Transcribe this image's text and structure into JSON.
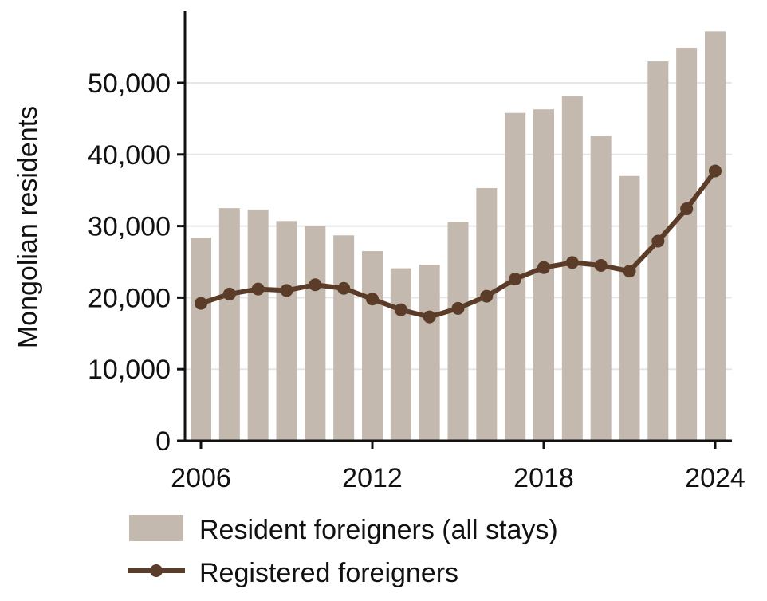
{
  "chart_data": {
    "type": "bar",
    "title": "",
    "xlabel": "",
    "ylabel": "Mongolian residents",
    "ylim": [
      0,
      60000
    ],
    "xlim": [
      2006,
      2024
    ],
    "x": [
      2006,
      2007,
      2008,
      2009,
      2010,
      2011,
      2012,
      2013,
      2014,
      2015,
      2016,
      2017,
      2018,
      2019,
      2020,
      2021,
      2022,
      2023,
      2024
    ],
    "y_ticks": [
      0,
      10000,
      20000,
      30000,
      40000,
      50000
    ],
    "y_tick_labels": [
      "0",
      "10,000",
      "20,000",
      "30,000",
      "40,000",
      "50,000"
    ],
    "x_ticks": [
      2006,
      2012,
      2018,
      2024
    ],
    "x_tick_labels": [
      "2006",
      "2012",
      "2018",
      "2024"
    ],
    "grid": "horizontal",
    "legend_position": "bottom",
    "series": [
      {
        "name": "Resident foreigners (all stays)",
        "kind": "bar",
        "color": "#c4b9ae",
        "values": [
          28400,
          32500,
          32300,
          30700,
          30000,
          28700,
          26500,
          24100,
          24600,
          30600,
          35300,
          45800,
          46300,
          48200,
          42600,
          37000,
          53000,
          54900,
          57200
        ]
      },
      {
        "name": "Registered foreigners",
        "kind": "line",
        "color": "#5a3c28",
        "values": [
          19200,
          20500,
          21200,
          21000,
          21800,
          21300,
          19800,
          18300,
          17300,
          18500,
          20200,
          22600,
          24200,
          24900,
          24500,
          23700,
          27900,
          32400,
          37700
        ]
      }
    ]
  }
}
